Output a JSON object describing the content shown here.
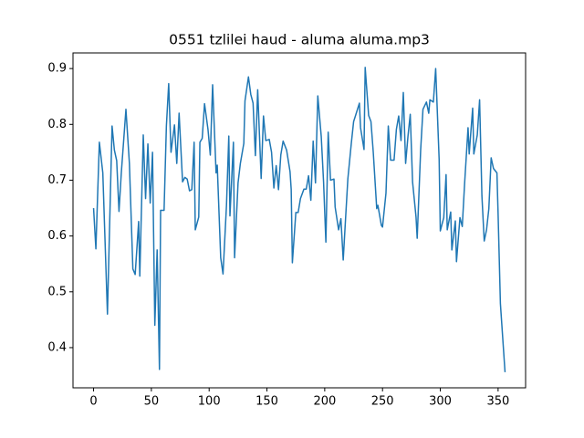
{
  "chart_data": {
    "type": "line",
    "title": "0551 tzlilei haud - aluma aluma.mp3",
    "x": [
      0,
      2,
      5,
      8,
      12,
      16,
      18,
      20,
      22,
      24,
      26,
      28,
      31,
      34,
      36,
      39,
      40,
      43,
      45,
      47,
      49,
      51,
      53,
      55,
      57,
      58,
      61,
      63,
      65,
      67,
      70,
      72,
      74,
      77,
      79,
      81,
      83,
      85,
      87,
      88,
      91,
      92,
      94,
      96,
      99,
      101,
      103,
      106,
      107,
      110,
      112,
      115,
      117,
      118,
      121,
      122,
      125,
      127,
      130,
      131,
      134,
      136,
      138,
      140,
      142,
      145,
      147,
      149,
      152,
      154,
      156,
      158,
      160,
      162,
      164,
      167,
      170,
      171,
      172,
      175,
      177,
      179,
      182,
      184,
      186,
      188,
      190,
      192,
      194,
      197,
      199,
      201,
      203,
      205,
      208,
      209,
      212,
      214,
      216,
      218,
      220,
      223,
      225,
      227,
      230,
      231,
      234,
      235,
      238,
      240,
      242,
      245,
      246,
      249,
      250,
      253,
      255,
      257,
      260,
      262,
      264,
      266,
      268,
      270,
      272,
      274,
      276,
      279,
      280,
      283,
      285,
      288,
      290,
      291,
      294,
      296,
      299,
      300,
      303,
      305,
      306,
      309,
      310,
      313,
      314,
      317,
      319,
      321,
      324,
      325,
      328,
      329,
      332,
      334,
      336,
      338,
      340,
      342,
      344,
      346,
      349,
      350,
      352,
      356
    ],
    "series": [
      {
        "name": "series",
        "color": "#1f77b4",
        "values": [
          0.65,
          0.577,
          0.768,
          0.713,
          0.46,
          0.797,
          0.754,
          0.735,
          0.644,
          0.713,
          0.77,
          0.827,
          0.73,
          0.541,
          0.531,
          0.626,
          0.528,
          0.781,
          0.667,
          0.765,
          0.659,
          0.75,
          0.44,
          0.575,
          0.361,
          0.646,
          0.646,
          0.797,
          0.873,
          0.75,
          0.799,
          0.73,
          0.82,
          0.697,
          0.705,
          0.702,
          0.681,
          0.683,
          0.768,
          0.611,
          0.634,
          0.768,
          0.775,
          0.837,
          0.791,
          0.745,
          0.871,
          0.713,
          0.727,
          0.561,
          0.532,
          0.655,
          0.779,
          0.636,
          0.768,
          0.561,
          0.695,
          0.73,
          0.766,
          0.842,
          0.885,
          0.854,
          0.838,
          0.744,
          0.862,
          0.703,
          0.815,
          0.771,
          0.773,
          0.75,
          0.686,
          0.726,
          0.683,
          0.745,
          0.77,
          0.754,
          0.715,
          0.683,
          0.552,
          0.642,
          0.642,
          0.667,
          0.684,
          0.684,
          0.708,
          0.664,
          0.77,
          0.695,
          0.851,
          0.778,
          0.697,
          0.589,
          0.786,
          0.7,
          0.702,
          0.652,
          0.611,
          0.631,
          0.557,
          0.63,
          0.702,
          0.766,
          0.805,
          0.818,
          0.838,
          0.794,
          0.755,
          0.902,
          0.816,
          0.805,
          0.75,
          0.649,
          0.655,
          0.619,
          0.616,
          0.677,
          0.797,
          0.736,
          0.736,
          0.791,
          0.815,
          0.771,
          0.857,
          0.73,
          0.778,
          0.818,
          0.697,
          0.634,
          0.596,
          0.754,
          0.827,
          0.84,
          0.82,
          0.844,
          0.84,
          0.9,
          0.737,
          0.609,
          0.633,
          0.71,
          0.611,
          0.643,
          0.575,
          0.627,
          0.554,
          0.633,
          0.617,
          0.693,
          0.794,
          0.747,
          0.829,
          0.747,
          0.781,
          0.844,
          0.672,
          0.591,
          0.611,
          0.649,
          0.74,
          0.721,
          0.713,
          0.64,
          0.479,
          0.356
        ]
      }
    ],
    "xlim": [
      -17.8,
      373.8
    ],
    "ylim": [
      0.328,
      0.928
    ],
    "xticks": [
      0,
      50,
      100,
      150,
      200,
      250,
      300,
      350
    ],
    "yticks": [
      0.4,
      0.5,
      0.6,
      0.7,
      0.8,
      0.9
    ]
  }
}
